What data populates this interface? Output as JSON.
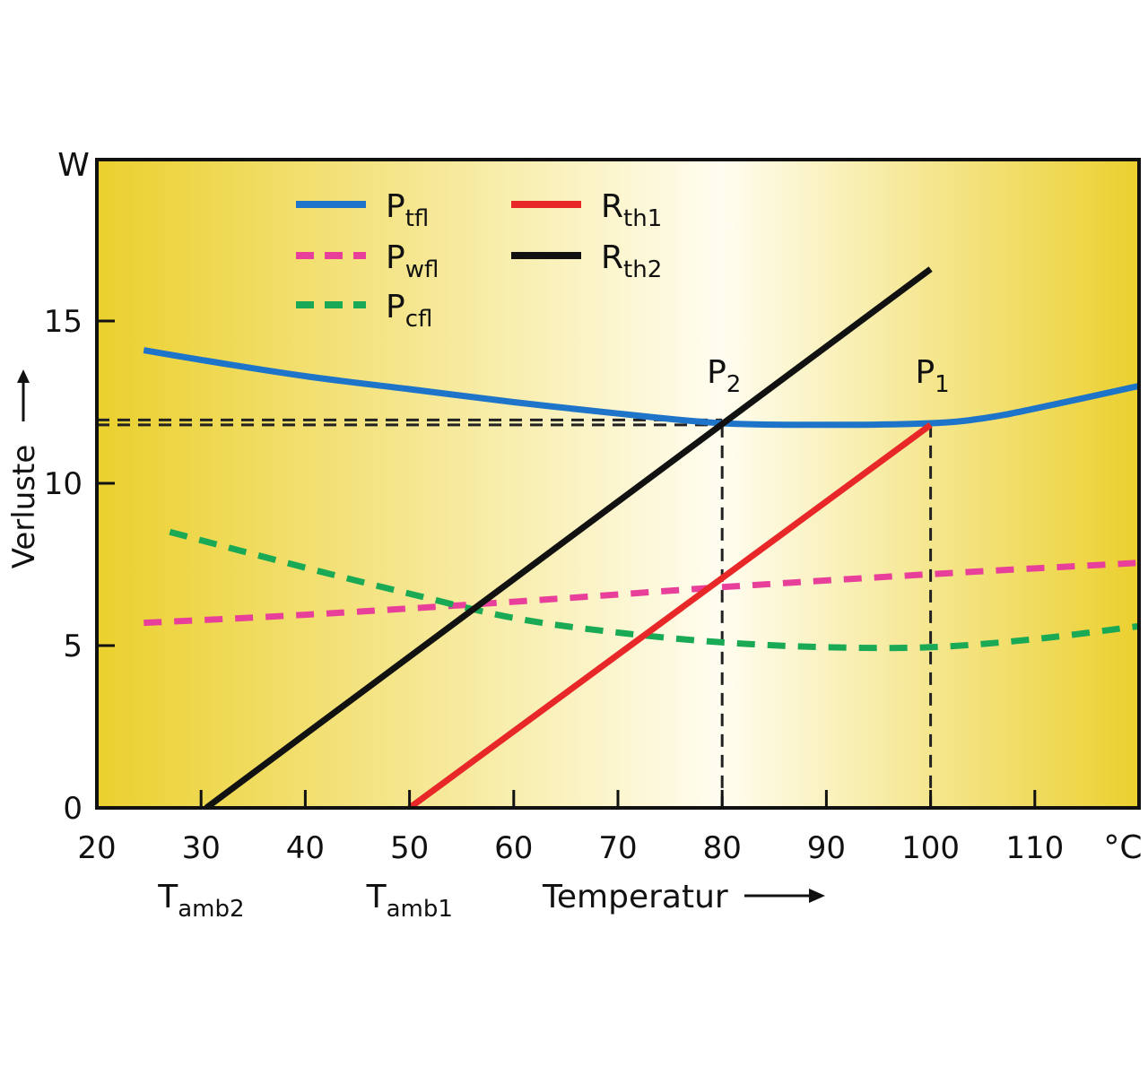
{
  "chart_data": {
    "type": "line",
    "x_unit": "°C",
    "y_unit": "W",
    "ylabel": "Verluste",
    "xlabel": "Temperatur",
    "xlim": [
      20,
      120
    ],
    "ylim": [
      0,
      20
    ],
    "x_ticks": [
      20,
      30,
      40,
      50,
      60,
      70,
      80,
      90,
      100,
      110
    ],
    "y_ticks": [
      0,
      5,
      10,
      15
    ],
    "background": {
      "edge": "#EBD02E",
      "center": "#FFFDF0"
    },
    "series": [
      {
        "name_base": "P",
        "name_sub": "tfl",
        "color": "#1E74C8",
        "style": "solid",
        "x": [
          24.5,
          30,
          40,
          50,
          60,
          70,
          80,
          90,
          100,
          105,
          110,
          120
        ],
        "y": [
          14.1,
          13.8,
          13.3,
          12.9,
          12.5,
          12.15,
          11.85,
          11.8,
          11.85,
          12.0,
          12.3,
          13.0
        ]
      },
      {
        "name_base": "P",
        "name_sub": "wfl",
        "color": "#E8409A",
        "style": "dashed",
        "x": [
          24.5,
          40,
          60,
          80,
          100,
          120
        ],
        "y": [
          5.7,
          5.95,
          6.35,
          6.8,
          7.2,
          7.55
        ]
      },
      {
        "name_base": "P",
        "name_sub": "cfl",
        "color": "#1AAA55",
        "style": "dashed",
        "x": [
          27,
          40,
          50,
          60,
          70,
          80,
          90,
          100,
          110,
          120
        ],
        "y": [
          8.5,
          7.4,
          6.6,
          5.85,
          5.4,
          5.1,
          4.95,
          4.95,
          5.2,
          5.6
        ]
      },
      {
        "name_base": "R",
        "name_sub": "th1",
        "color": "#E82828",
        "style": "solid",
        "x": [
          50,
          100
        ],
        "y": [
          0,
          11.8
        ]
      },
      {
        "name_base": "R",
        "name_sub": "th2",
        "color": "#111111",
        "style": "solid",
        "x": [
          30.5,
          100
        ],
        "y": [
          0,
          16.6
        ]
      }
    ],
    "reference_lines": {
      "horizontal_y": [
        11.8,
        11.95
      ],
      "vertical_x": [
        80,
        100
      ]
    },
    "annotations": [
      {
        "base": "P",
        "sub": "2",
        "x": 80,
        "y": 11.85
      },
      {
        "base": "P",
        "sub": "1",
        "x": 100,
        "y": 11.85
      },
      {
        "base": "T",
        "sub": "amb2",
        "x": 30
      },
      {
        "base": "T",
        "sub": "amb1",
        "x": 50
      }
    ],
    "legend": {
      "placement": "top-left",
      "columns": 2
    }
  }
}
